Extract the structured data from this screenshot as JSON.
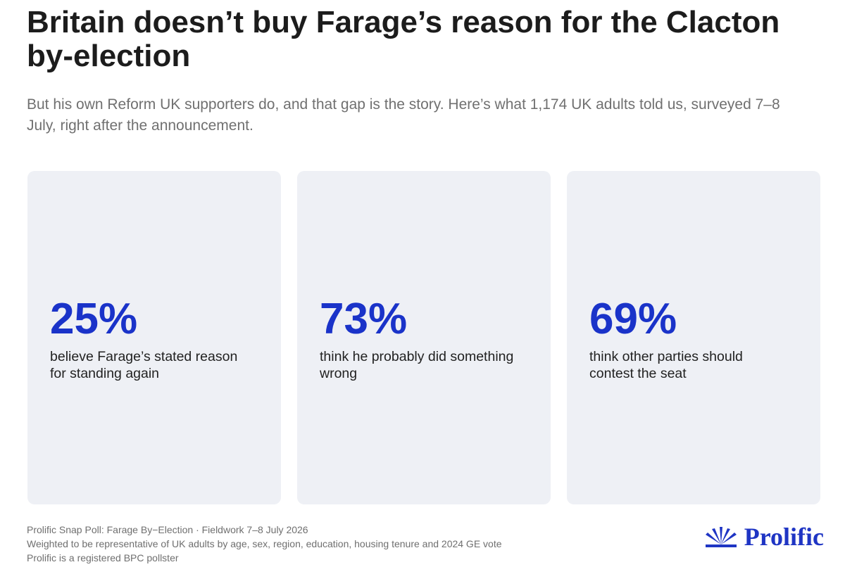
{
  "header": {
    "title": "Britain doesn’t buy Farage’s reason for the Clacton by-election",
    "subtitle": "But his own Reform UK supporters do, and that gap is the story. Here’s what 1,174 UK adults told us, surveyed 7–8 July, right after the announcement."
  },
  "cards": [
    {
      "stat": "25%",
      "label": "believe Farage’s stated reason for standing again"
    },
    {
      "stat": "73%",
      "label": "think he probably did something wrong"
    },
    {
      "stat": "69%",
      "label": "think other parties should contest the seat"
    }
  ],
  "footer": {
    "lines": [
      "Prolific Snap Poll: Farage By−Election · Fieldwork 7–8 July 2026",
      "Weighted to be representative of UK adults by age, sex, region, education, housing tenure and 2024 GE vote",
      "Prolific is a registered BPC pollster"
    ],
    "logo": "Prolific"
  }
}
